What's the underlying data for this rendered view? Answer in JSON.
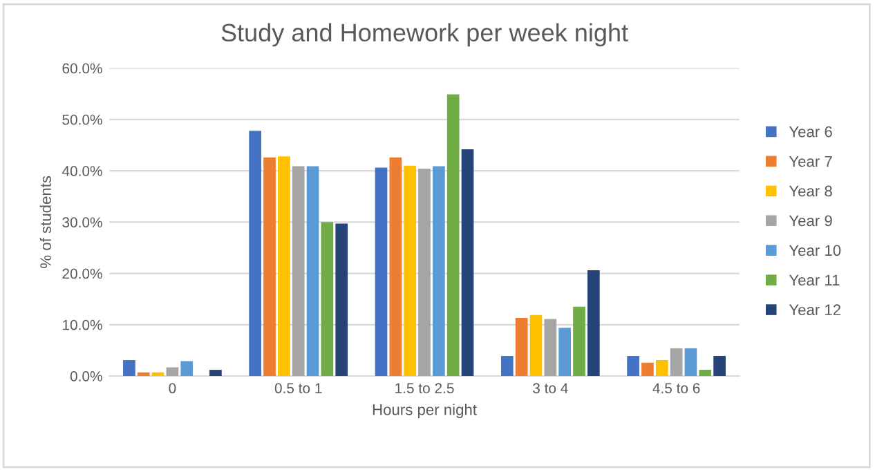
{
  "chart_data": {
    "type": "bar",
    "title": "Study and Homework per week night",
    "xlabel": "Hours per night",
    "ylabel": "% of students",
    "categories": [
      "0",
      "0.5 to 1",
      "1.5 to 2.5",
      "3 to 4",
      "4.5 to 6"
    ],
    "series": [
      {
        "name": "Year 6",
        "color": "#4472c4",
        "values": [
          3.1,
          47.8,
          40.6,
          3.9,
          3.9
        ]
      },
      {
        "name": "Year 7",
        "color": "#ed7d31",
        "values": [
          0.7,
          42.6,
          42.6,
          11.3,
          2.6
        ]
      },
      {
        "name": "Year 8",
        "color": "#ffc000",
        "values": [
          0.7,
          42.8,
          41.0,
          11.9,
          3.1
        ]
      },
      {
        "name": "Year 9",
        "color": "#a5a5a5",
        "values": [
          1.7,
          40.9,
          40.4,
          11.1,
          5.4
        ]
      },
      {
        "name": "Year 10",
        "color": "#5b9bd5",
        "values": [
          2.9,
          40.9,
          40.9,
          9.4,
          5.4
        ]
      },
      {
        "name": "Year 11",
        "color": "#70ad47",
        "values": [
          0,
          30.0,
          54.9,
          13.5,
          1.2
        ]
      },
      {
        "name": "Year 12",
        "color": "#264478",
        "values": [
          1.2,
          29.7,
          44.2,
          20.6,
          3.9
        ]
      }
    ],
    "ylim": [
      0,
      60
    ],
    "yticks": [
      {
        "value": 0,
        "label": "0.0%"
      },
      {
        "value": 10,
        "label": "10.0%"
      },
      {
        "value": 20,
        "label": "20.0%"
      },
      {
        "value": 30,
        "label": "30.0%"
      },
      {
        "value": 40,
        "label": "40.0%"
      },
      {
        "value": 50,
        "label": "50.0%"
      },
      {
        "value": 60,
        "label": "60.0%"
      }
    ],
    "grid": "y",
    "legend": "right"
  }
}
